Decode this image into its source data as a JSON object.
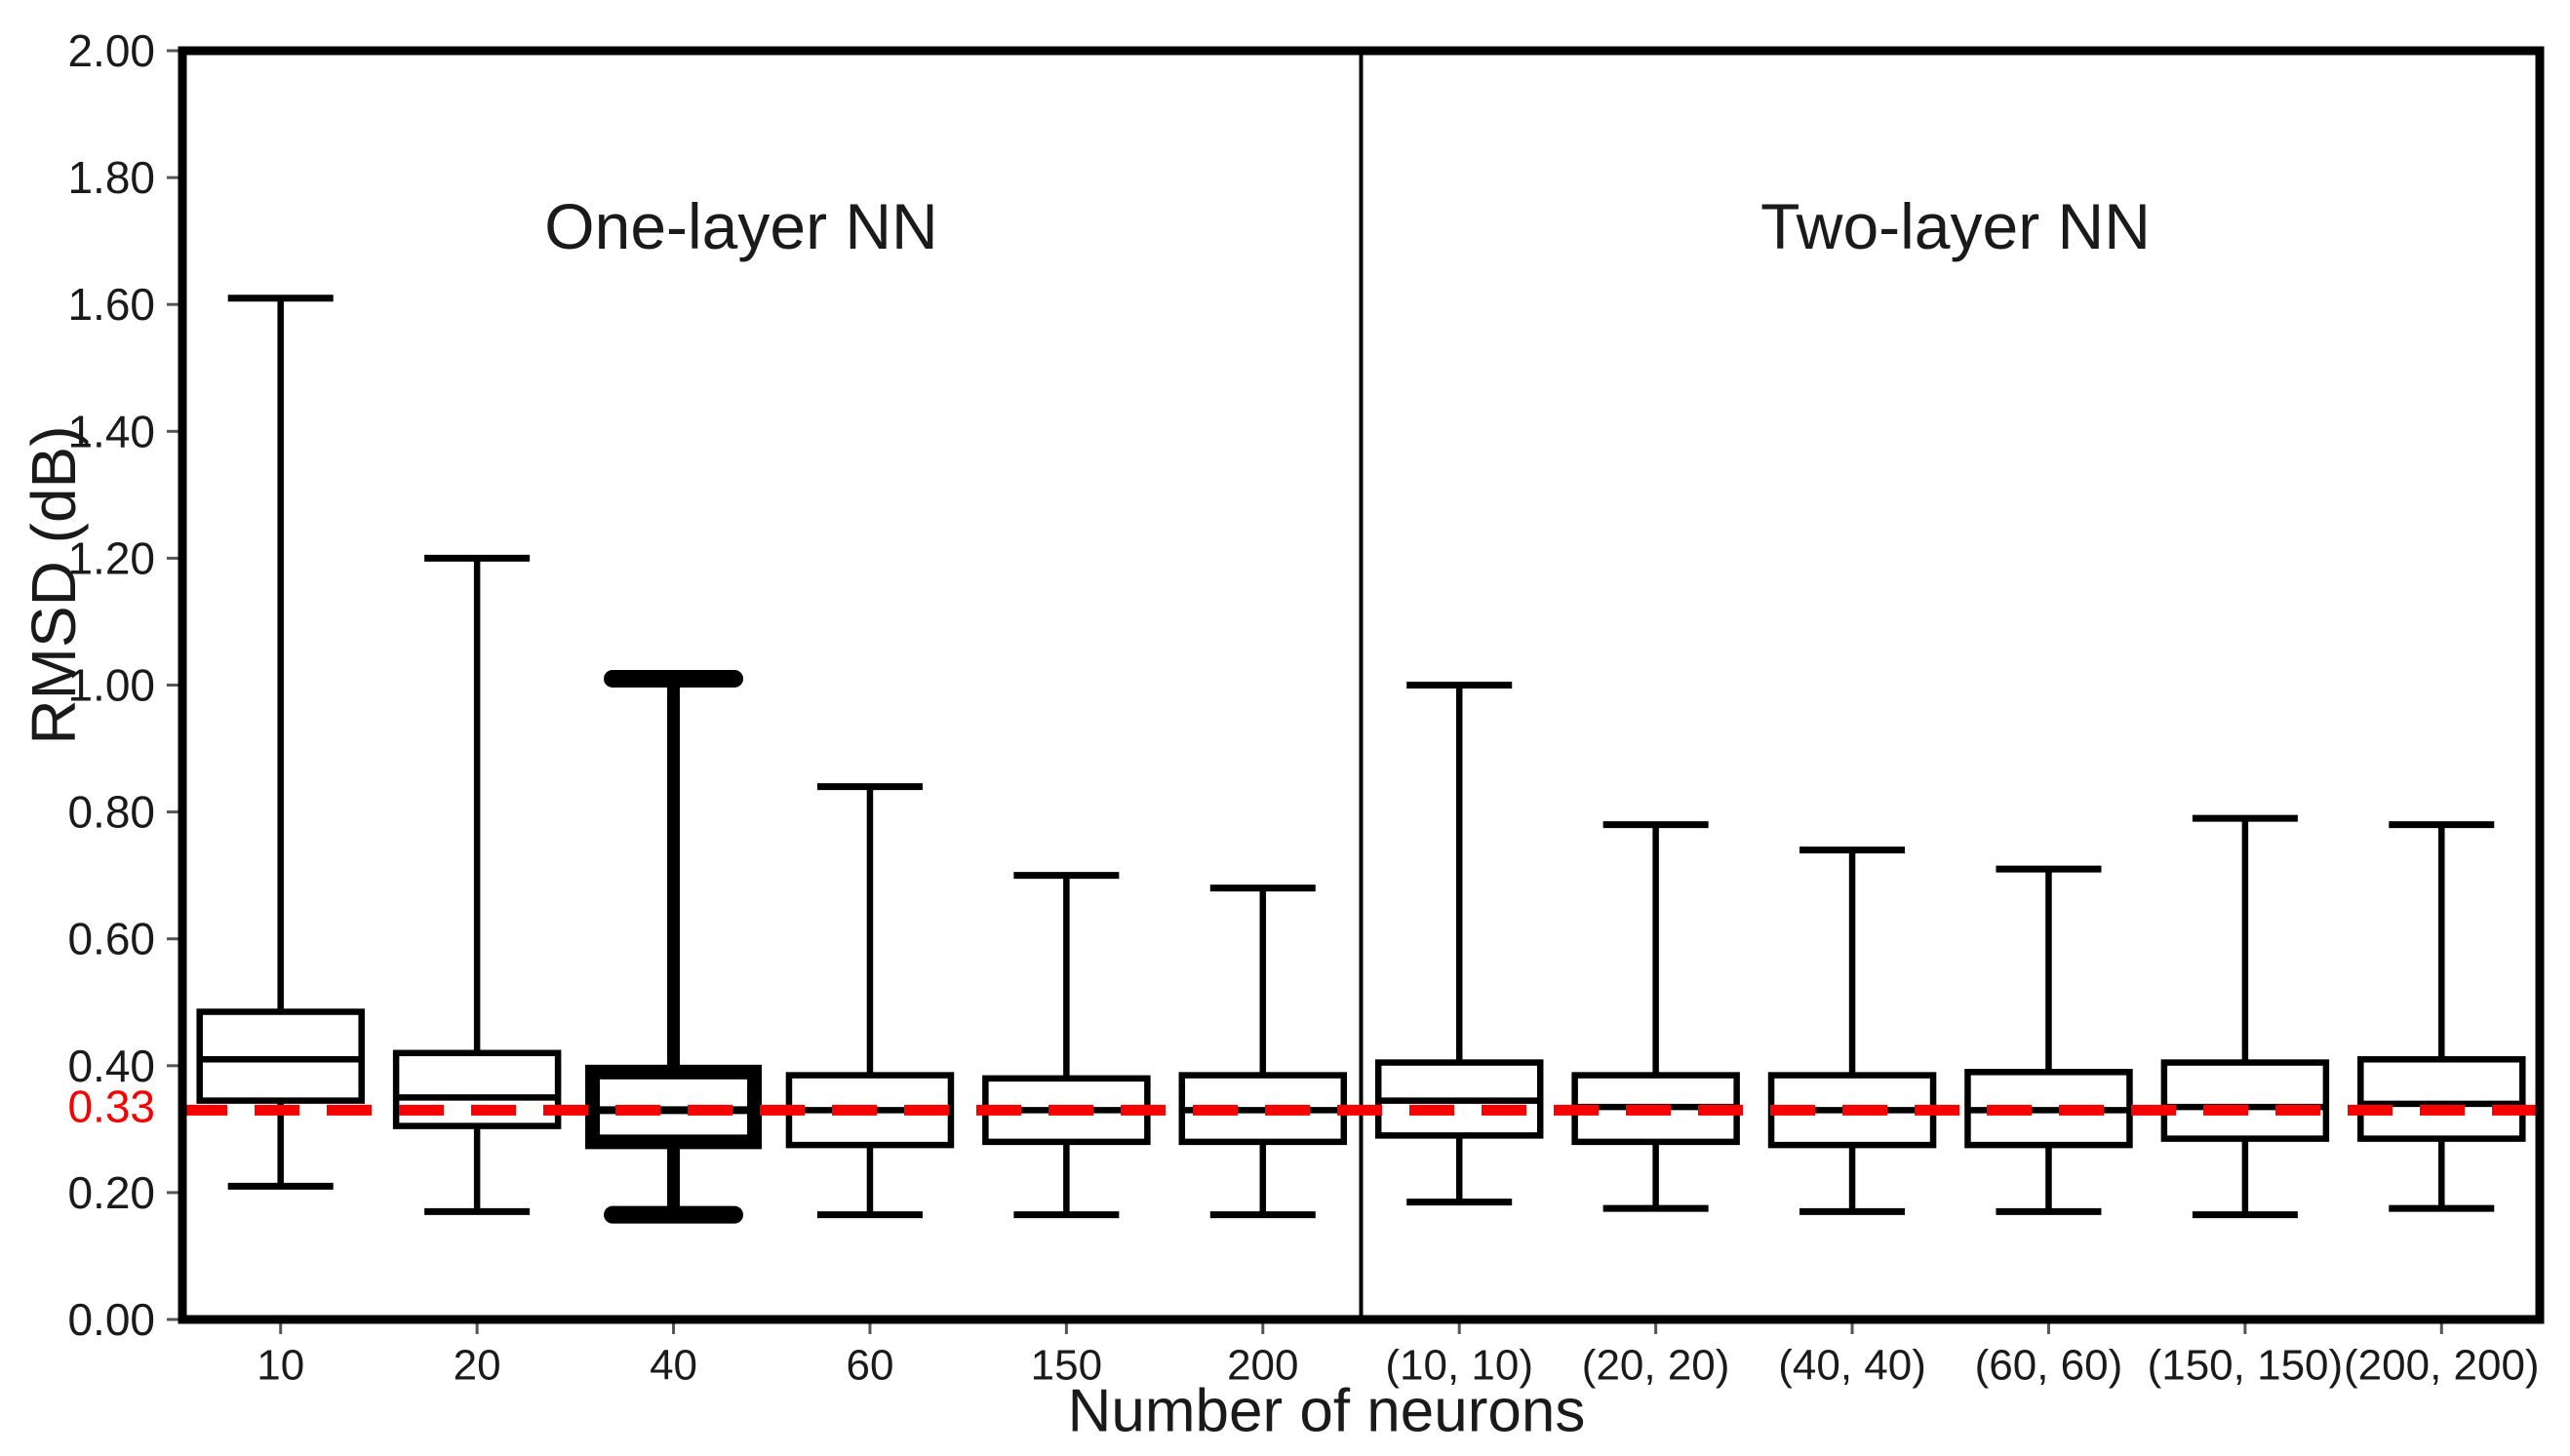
{
  "figure": {
    "background": "#ffffff",
    "line_color": "#000000",
    "accent_color": "#f80000"
  },
  "chart_data": {
    "type": "boxplot",
    "title": "",
    "xlabel": "Number of neurons",
    "ylabel": "RMSD (dB)",
    "ylim": [
      0.0,
      2.0
    ],
    "y_tick_labels": [
      "0.00",
      "0.20",
      "0.40",
      "0.60",
      "0.80",
      "1.00",
      "1.20",
      "1.40",
      "1.60",
      "1.80",
      "2.00"
    ],
    "grid": false,
    "legend": "none",
    "reference_line": {
      "value": 0.33,
      "label": "0.33",
      "color": "#f80000",
      "style": "dashed"
    },
    "panels": [
      {
        "label": "One-layer NN",
        "boxes": [
          {
            "category": "10",
            "whisker_low": 0.21,
            "q1": 0.345,
            "median": 0.41,
            "q3": 0.485,
            "whisker_high": 1.61,
            "bold": false
          },
          {
            "category": "20",
            "whisker_low": 0.17,
            "q1": 0.305,
            "median": 0.35,
            "q3": 0.42,
            "whisker_high": 1.2,
            "bold": false
          },
          {
            "category": "40",
            "whisker_low": 0.165,
            "q1": 0.28,
            "median": 0.33,
            "q3": 0.39,
            "whisker_high": 1.01,
            "bold": true
          },
          {
            "category": "60",
            "whisker_low": 0.165,
            "q1": 0.275,
            "median": 0.33,
            "q3": 0.385,
            "whisker_high": 0.84,
            "bold": false
          },
          {
            "category": "150",
            "whisker_low": 0.165,
            "q1": 0.28,
            "median": 0.33,
            "q3": 0.38,
            "whisker_high": 0.7,
            "bold": false
          },
          {
            "category": "200",
            "whisker_low": 0.165,
            "q1": 0.28,
            "median": 0.33,
            "q3": 0.385,
            "whisker_high": 0.68,
            "bold": false
          }
        ]
      },
      {
        "label": "Two-layer NN",
        "boxes": [
          {
            "category": "(10, 10)",
            "whisker_low": 0.185,
            "q1": 0.29,
            "median": 0.345,
            "q3": 0.405,
            "whisker_high": 1.0,
            "bold": false
          },
          {
            "category": "(20, 20)",
            "whisker_low": 0.175,
            "q1": 0.28,
            "median": 0.335,
            "q3": 0.385,
            "whisker_high": 0.78,
            "bold": false
          },
          {
            "category": "(40, 40)",
            "whisker_low": 0.17,
            "q1": 0.275,
            "median": 0.33,
            "q3": 0.385,
            "whisker_high": 0.74,
            "bold": false
          },
          {
            "category": "(60, 60)",
            "whisker_low": 0.17,
            "q1": 0.275,
            "median": 0.33,
            "q3": 0.39,
            "whisker_high": 0.71,
            "bold": false
          },
          {
            "category": "(150, 150)",
            "whisker_low": 0.165,
            "q1": 0.285,
            "median": 0.335,
            "q3": 0.405,
            "whisker_high": 0.79,
            "bold": false
          },
          {
            "category": "(200, 200)",
            "whisker_low": 0.175,
            "q1": 0.285,
            "median": 0.34,
            "q3": 0.41,
            "whisker_high": 0.78,
            "bold": false
          }
        ]
      }
    ]
  }
}
